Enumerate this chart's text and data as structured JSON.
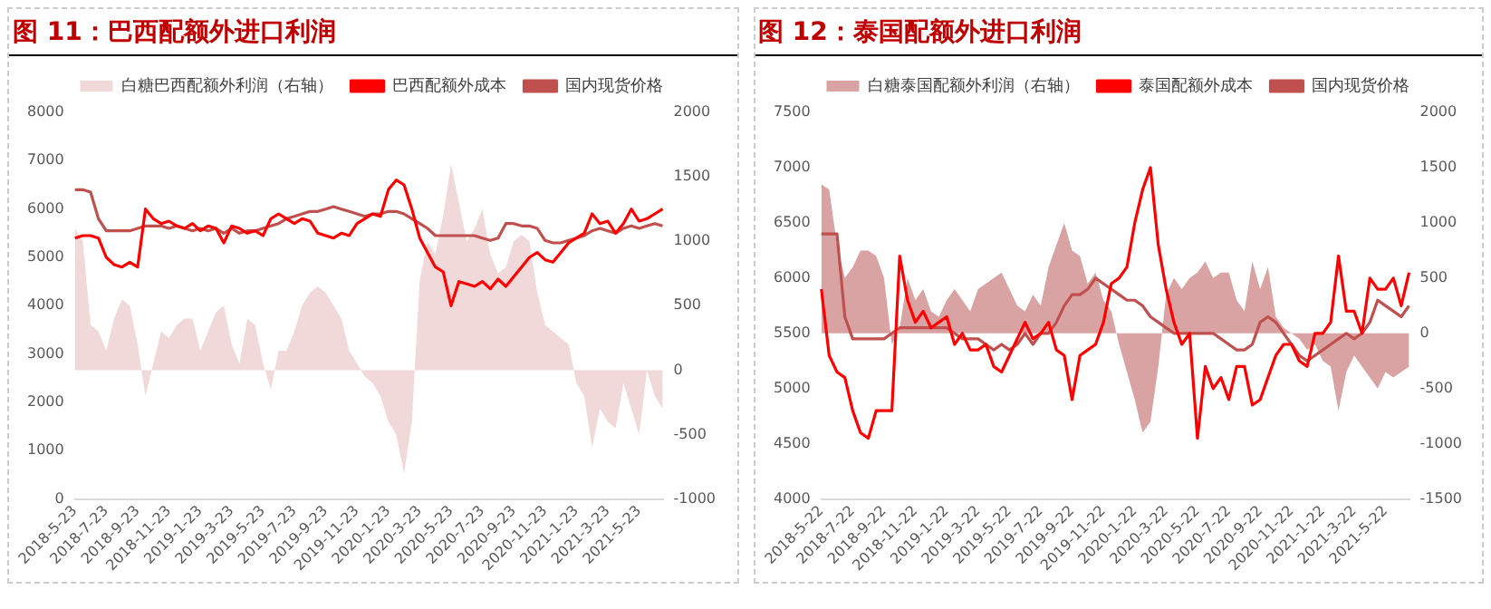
{
  "chart_data": [
    {
      "type": "line",
      "title": "图 11：巴西配额外进口利润",
      "categories": [
        "2018-5-23",
        null,
        null,
        null,
        "2018-7-23",
        null,
        null,
        null,
        "2018-9-23",
        null,
        null,
        null,
        "2018-11-23",
        null,
        null,
        null,
        "2019-1-23",
        null,
        null,
        null,
        "2019-3-23",
        null,
        null,
        null,
        "2019-5-23",
        null,
        null,
        null,
        "2019-7-23",
        null,
        null,
        null,
        "2019-9-23",
        null,
        null,
        null,
        "2019-11-23",
        null,
        null,
        null,
        "2020-1-23",
        null,
        null,
        null,
        "2020-3-23",
        null,
        null,
        null,
        "2020-5-23",
        null,
        null,
        null,
        "2020-7-23",
        null,
        null,
        null,
        "2020-9-23",
        null,
        null,
        null,
        "2020-11-23",
        null,
        null,
        null,
        "2021-1-23",
        null,
        null,
        null,
        "2021-3-23",
        null,
        null,
        null,
        "2021-5-23",
        null,
        null,
        null
      ],
      "series": [
        {
          "name": "白糖巴西配额外利润（右轴）",
          "type": "area",
          "axis": "y2",
          "color": "#f2d9d9",
          "values": [
            1100,
            1000,
            350,
            300,
            150,
            400,
            550,
            500,
            200,
            -200,
            50,
            300,
            250,
            350,
            400,
            400,
            150,
            300,
            450,
            500,
            200,
            50,
            400,
            350,
            50,
            -150,
            150,
            150,
            300,
            500,
            600,
            650,
            600,
            500,
            400,
            150,
            50,
            -50,
            -100,
            -200,
            -400,
            -500,
            -800,
            -400,
            700,
            1000,
            900,
            1200,
            1600,
            1300,
            1000,
            1100,
            1250,
            900,
            750,
            800,
            1000,
            1050,
            1000,
            600,
            350,
            300,
            250,
            200,
            -100,
            -200,
            -600,
            -300,
            -400,
            -450,
            -100,
            -300,
            -500,
            0,
            -200,
            -300
          ]
        },
        {
          "name": "巴西配额外成本",
          "color": "#ff0000",
          "values": [
            5400,
            5450,
            5450,
            5400,
            5000,
            4850,
            4800,
            4900,
            4800,
            6000,
            5800,
            5700,
            5750,
            5650,
            5600,
            5700,
            5550,
            5650,
            5600,
            5300,
            5650,
            5600,
            5500,
            5550,
            5450,
            5800,
            5900,
            5800,
            5700,
            5800,
            5750,
            5500,
            5450,
            5400,
            5500,
            5450,
            5700,
            5800,
            5900,
            5850,
            6400,
            6600,
            6500,
            6000,
            5400,
            5100,
            4800,
            4700,
            4000,
            4500,
            4450,
            4400,
            4500,
            4350,
            4550,
            4400,
            4600,
            4800,
            5000,
            5100,
            4950,
            4900,
            5100,
            5300,
            5400,
            5500,
            5900,
            5700,
            5750,
            5500,
            5700,
            6000,
            5750,
            5800,
            5900,
            6000
          ]
        },
        {
          "name": "国内现货价格",
          "color": "#c0504d",
          "values": [
            6400,
            6400,
            6350,
            5800,
            5550,
            5550,
            5550,
            5550,
            5600,
            5650,
            5650,
            5650,
            5600,
            5650,
            5600,
            5550,
            5600,
            5550,
            5600,
            5500,
            5600,
            5500,
            5550,
            5550,
            5600,
            5650,
            5700,
            5800,
            5850,
            5900,
            5950,
            5950,
            6000,
            6050,
            6000,
            5950,
            5900,
            5850,
            5900,
            5900,
            5950,
            5950,
            5900,
            5800,
            5700,
            5600,
            5450,
            5450,
            5450,
            5450,
            5450,
            5450,
            5400,
            5350,
            5400,
            5700,
            5700,
            5650,
            5650,
            5600,
            5350,
            5300,
            5300,
            5350,
            5400,
            5450,
            5550,
            5600,
            5550,
            5500,
            5600,
            5650,
            5600,
            5650,
            5700,
            5650
          ]
        }
      ],
      "ylim": [
        0,
        8000
      ],
      "yticks": [
        0,
        1000,
        2000,
        3000,
        4000,
        5000,
        6000,
        7000,
        8000
      ],
      "y2lim": [
        -1000,
        2000
      ],
      "y2ticks": [
        -1000,
        -500,
        0,
        500,
        1000,
        1500,
        2000
      ],
      "grid": false,
      "legend": "top"
    },
    {
      "type": "line",
      "title": "图 12：泰国配额外进口利润",
      "categories": [
        "2018-5-22",
        null,
        null,
        null,
        "2018-7-22",
        null,
        null,
        null,
        "2018-9-22",
        null,
        null,
        null,
        "2018-11-22",
        null,
        null,
        null,
        "2019-1-22",
        null,
        null,
        null,
        "2019-3-22",
        null,
        null,
        null,
        "2019-5-22",
        null,
        null,
        null,
        "2019-7-22",
        null,
        null,
        null,
        "2019-9-22",
        null,
        null,
        null,
        "2019-11-22",
        null,
        null,
        null,
        "2020-1-22",
        null,
        null,
        null,
        "2020-3-22",
        null,
        null,
        null,
        "2020-5-22",
        null,
        null,
        null,
        "2020-7-22",
        null,
        null,
        null,
        "2020-9-22",
        null,
        null,
        null,
        "2020-11-22",
        null,
        null,
        null,
        "2021-1-22",
        null,
        null,
        null,
        "2021-3-22",
        null,
        null,
        null,
        "2021-5-22",
        null,
        null,
        null
      ],
      "series": [
        {
          "name": "白糖泰国配额外利润（右轴）",
          "type": "area",
          "axis": "y2",
          "color": "#d9a3a3",
          "values": [
            1350,
            1300,
            800,
            500,
            600,
            750,
            750,
            700,
            500,
            -100,
            50,
            500,
            300,
            400,
            200,
            150,
            300,
            400,
            300,
            200,
            400,
            450,
            500,
            550,
            400,
            250,
            200,
            350,
            250,
            600,
            800,
            1000,
            750,
            700,
            450,
            550,
            300,
            200,
            -100,
            -350,
            -600,
            -900,
            -800,
            -300,
            350,
            500,
            400,
            500,
            550,
            650,
            500,
            550,
            550,
            300,
            200,
            650,
            400,
            600,
            150,
            50,
            0,
            -50,
            -150,
            -100,
            -250,
            -300,
            -700,
            -350,
            -200,
            -300,
            -400,
            -500,
            -350,
            -400,
            -350,
            -300
          ]
        },
        {
          "name": "泰国配额外成本",
          "color": "#ff0000",
          "values": [
            5900,
            5300,
            5150,
            5100,
            4800,
            4600,
            4550,
            4800,
            4800,
            4800,
            6200,
            5800,
            5600,
            5700,
            5550,
            5600,
            5650,
            5400,
            5500,
            5350,
            5350,
            5400,
            5200,
            5150,
            5300,
            5450,
            5600,
            5450,
            5500,
            5600,
            5350,
            5300,
            4900,
            5300,
            5350,
            5400,
            5600,
            5950,
            6000,
            6100,
            6500,
            6800,
            7000,
            6300,
            5900,
            5600,
            5400,
            5500,
            4550,
            5200,
            5000,
            5100,
            4900,
            5200,
            5200,
            4850,
            4900,
            5100,
            5300,
            5400,
            5400,
            5250,
            5200,
            5500,
            5500,
            5600,
            6200,
            5700,
            5700,
            5500,
            6000,
            5900,
            5900,
            6000,
            5750,
            6050
          ]
        },
        {
          "name": "国内现货价格",
          "color": "#c0504d",
          "values": [
            6400,
            6400,
            6400,
            5650,
            5450,
            5450,
            5450,
            5450,
            5450,
            5500,
            5550,
            5550,
            5550,
            5550,
            5550,
            5550,
            5550,
            5500,
            5450,
            5450,
            5450,
            5400,
            5350,
            5400,
            5350,
            5400,
            5500,
            5400,
            5500,
            5500,
            5600,
            5750,
            5850,
            5850,
            5900,
            6000,
            5950,
            5900,
            5850,
            5800,
            5800,
            5750,
            5650,
            5600,
            5550,
            5500,
            5500,
            5500,
            5500,
            5500,
            5500,
            5450,
            5400,
            5350,
            5350,
            5400,
            5600,
            5650,
            5600,
            5500,
            5400,
            5300,
            5250,
            5300,
            5350,
            5400,
            5450,
            5500,
            5450,
            5500,
            5600,
            5800,
            5750,
            5700,
            5650,
            5750
          ]
        }
      ],
      "ylim": [
        4000,
        7500
      ],
      "yticks": [
        4000,
        4500,
        5000,
        5500,
        6000,
        6500,
        7000,
        7500
      ],
      "y2lim": [
        -1500,
        2000
      ],
      "y2ticks": [
        -1500,
        -1000,
        -500,
        0,
        500,
        1000,
        1500,
        2000
      ],
      "grid": false,
      "legend": "top"
    }
  ]
}
